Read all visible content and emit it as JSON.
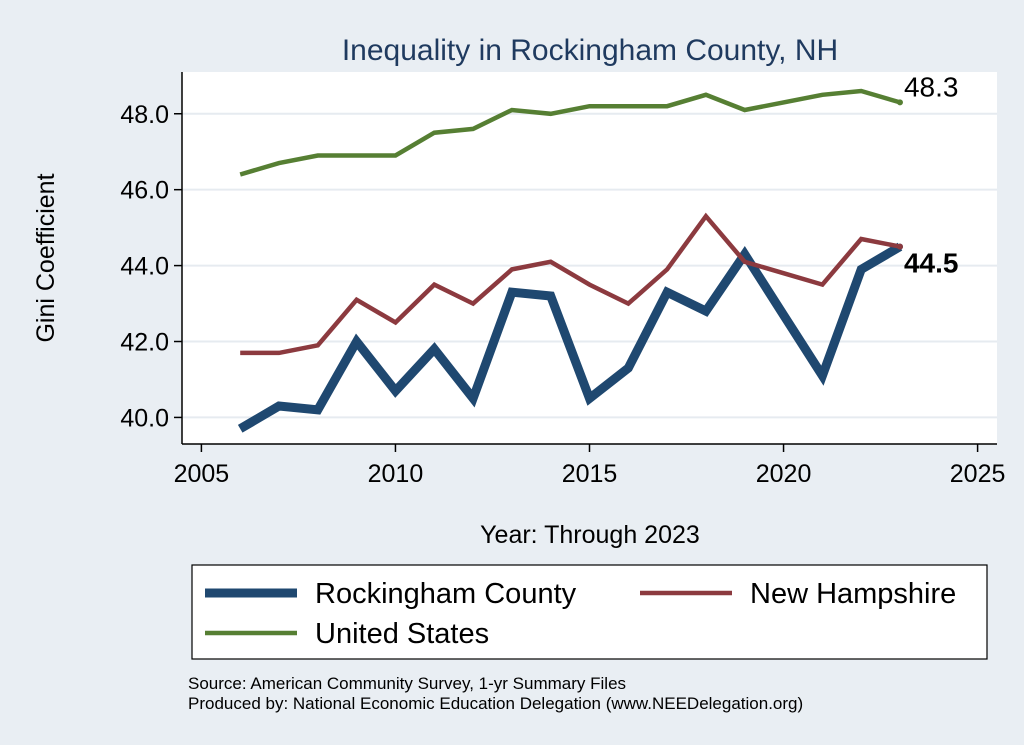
{
  "chart_data": {
    "type": "line",
    "title": "Inequality in Rockingham County, NH",
    "xlabel": "Year: Through 2023",
    "ylabel": "Gini Coefficient",
    "xlim": [
      2004.5,
      2025.5
    ],
    "ylim": [
      39.3,
      49.1
    ],
    "xticks": [
      2005,
      2010,
      2015,
      2020,
      2025
    ],
    "yticks": [
      40,
      42,
      44,
      46,
      48
    ],
    "ytick_labels": [
      "40.0",
      "42.0",
      "44.0",
      "46.0",
      "48.0"
    ],
    "grid": true,
    "legend_position": "bottom",
    "x": [
      2006,
      2007,
      2008,
      2009,
      2010,
      2011,
      2012,
      2013,
      2014,
      2015,
      2016,
      2017,
      2018,
      2019,
      2020,
      2021,
      2022,
      2023
    ],
    "series": [
      {
        "name": "Rockingham County",
        "color": "#1f4870",
        "values": [
          39.7,
          40.3,
          40.2,
          42.0,
          40.7,
          41.8,
          40.5,
          43.3,
          43.2,
          40.5,
          41.3,
          43.3,
          42.8,
          44.3,
          42.7,
          41.1,
          43.9,
          44.5
        ]
      },
      {
        "name": "New Hampshire",
        "color": "#8c3a3f",
        "values": [
          41.7,
          41.7,
          41.9,
          43.1,
          42.5,
          43.5,
          43.0,
          43.9,
          44.1,
          43.5,
          43.0,
          43.9,
          45.3,
          44.1,
          43.8,
          43.5,
          44.7,
          44.5
        ]
      },
      {
        "name": "United States",
        "color": "#567f33",
        "values": [
          46.4,
          46.7,
          46.9,
          46.9,
          46.9,
          47.5,
          47.6,
          48.1,
          48.0,
          48.2,
          48.2,
          48.2,
          48.5,
          48.1,
          48.3,
          48.5,
          48.6,
          48.3
        ]
      }
    ],
    "end_labels": [
      {
        "text": "48.3",
        "series": "United States"
      },
      {
        "text": "44.5",
        "series": "Rockingham County"
      }
    ]
  },
  "notes": {
    "source": "Source: American Community Survey, 1-yr Summary Files",
    "produced_by": "Produced by: National Economic Education Delegation (www.NEEDelegation.org)"
  }
}
